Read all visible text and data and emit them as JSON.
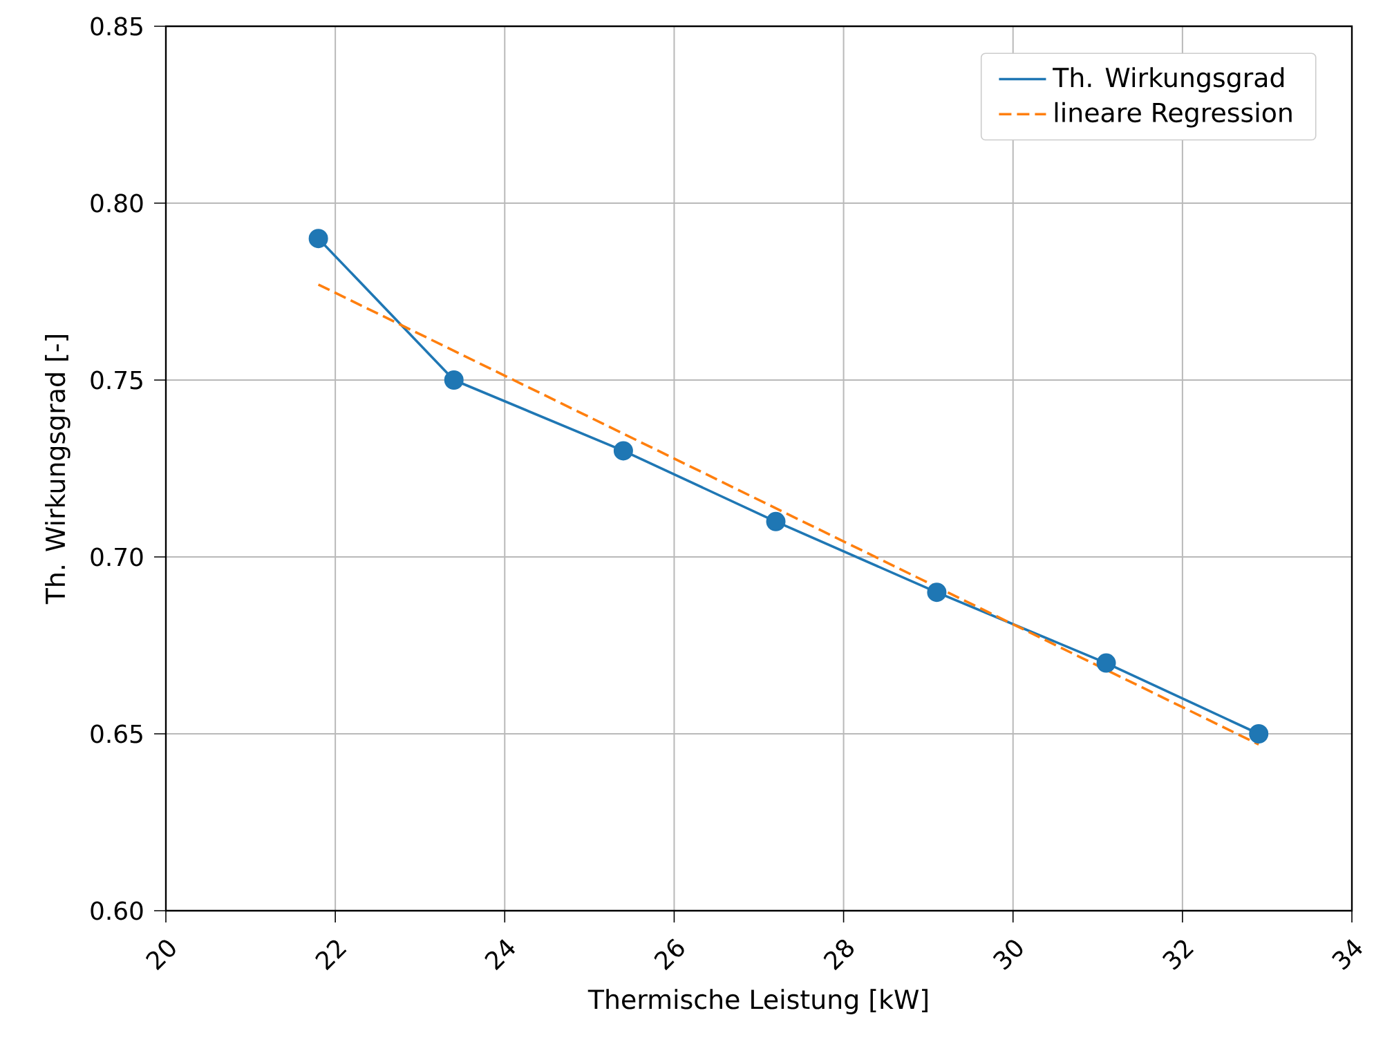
{
  "chart_data": {
    "type": "line",
    "xlabel": "Thermische Leistung [kW]",
    "ylabel": "Th. Wirkungsgrad [-]",
    "xlim": [
      20,
      34
    ],
    "ylim": [
      0.6,
      0.85
    ],
    "xticks": [
      20,
      22,
      24,
      26,
      28,
      30,
      32,
      34
    ],
    "yticks": [
      {
        "value": 0.6,
        "label": "0.60"
      },
      0.65,
      {
        "value": 0.7,
        "label": "0.70"
      },
      0.75,
      {
        "value": 0.8,
        "label": "0.80"
      },
      0.85
    ],
    "grid": true,
    "legend": "top right",
    "series": [
      {
        "name": "Th. Wirkungsgrad",
        "color": "#1f77b4",
        "x": [
          21.8,
          23.4,
          25.4,
          27.2,
          29.1,
          31.1,
          32.9
        ],
        "values": [
          0.79,
          0.75,
          0.73,
          0.71,
          0.69,
          0.67,
          0.65
        ]
      },
      {
        "type": "scatter",
        "marker": "circle",
        "color": "#1f77b4",
        "x": [
          21.8,
          23.4,
          25.4,
          27.2,
          29.1,
          31.1,
          32.9
        ],
        "values": [
          0.79,
          0.75,
          0.73,
          0.71,
          0.69,
          0.67,
          0.65
        ]
      },
      {
        "name": "lineare Regression",
        "type": "line",
        "line_style": "dashed",
        "color": "#ff7f0e",
        "x": [
          21.8,
          32.9
        ],
        "values": [
          0.777,
          0.647
        ]
      }
    ]
  }
}
